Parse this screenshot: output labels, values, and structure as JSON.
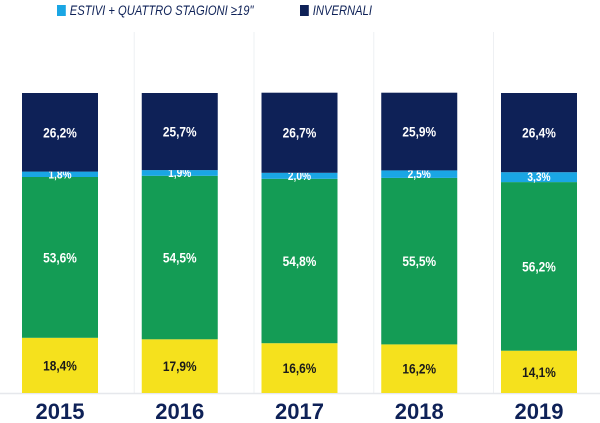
{
  "chart_data": {
    "type": "bar",
    "stacked": true,
    "categories": [
      "2015",
      "2016",
      "2017",
      "2018",
      "2019"
    ],
    "series": [
      {
        "name": "",
        "color": "#f5e11d",
        "values": [
          18.4,
          17.9,
          16.6,
          16.2,
          14.1
        ],
        "labels": [
          "18,4%",
          "17,9%",
          "16,6%",
          "16,2%",
          "14,1%"
        ],
        "label_color": "#1a1a1a"
      },
      {
        "name": "",
        "color": "#149c55",
        "values": [
          53.6,
          54.5,
          54.8,
          55.5,
          56.2
        ],
        "labels": [
          "53,6%",
          "54,5%",
          "54,8%",
          "55,5%",
          "56,2%"
        ],
        "label_color": "#ffffff"
      },
      {
        "name": "ESTIVI + QUATTRO STAGIONI ≥19\"",
        "color": "#1aa6e4",
        "values": [
          1.8,
          1.9,
          2.0,
          2.5,
          3.3
        ],
        "labels": [
          "1,8%",
          "1,9%",
          "2,0%",
          "2,5%",
          "3,3%"
        ],
        "label_color": "#ffffff"
      },
      {
        "name": "INVERNALI",
        "color": "#0e2157",
        "values": [
          26.2,
          25.7,
          26.7,
          25.9,
          26.4
        ],
        "labels": [
          "26,2%",
          "25,7%",
          "26,7%",
          "25,9%",
          "26,4%"
        ],
        "label_color": "#ffffff"
      }
    ],
    "ylim": [
      0,
      100
    ],
    "legend": "top",
    "grid": false
  }
}
